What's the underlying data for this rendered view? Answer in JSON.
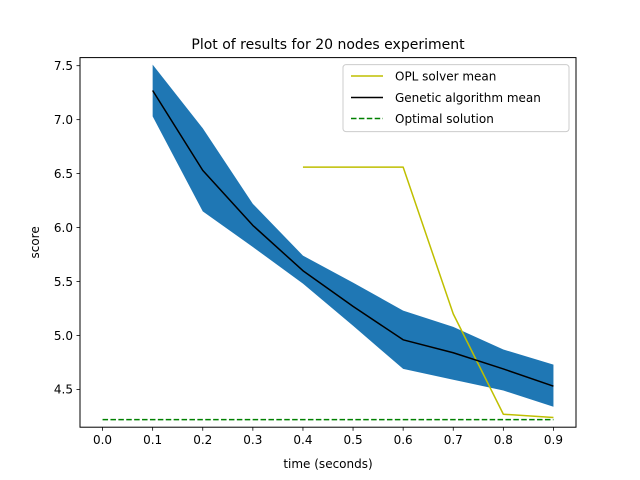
{
  "chart_data": {
    "type": "line",
    "title": "Plot of results for 20 nodes experiment",
    "xlabel": "time (seconds)",
    "ylabel": "score",
    "xlim": [
      -0.045,
      0.945
    ],
    "ylim": [
      4.15,
      7.575
    ],
    "xticks": [
      0.0,
      0.1,
      0.2,
      0.3,
      0.4,
      0.5,
      0.6,
      0.7,
      0.8,
      0.9
    ],
    "xtick_labels": [
      "0.0",
      "0.1",
      "0.2",
      "0.3",
      "0.4",
      "0.5",
      "0.6",
      "0.7",
      "0.8",
      "0.9"
    ],
    "yticks": [
      4.5,
      5.0,
      5.5,
      6.0,
      6.5,
      7.0,
      7.5
    ],
    "ytick_labels": [
      "4.5",
      "5.0",
      "5.5",
      "6.0",
      "6.5",
      "7.0",
      "7.5"
    ],
    "grid": false,
    "legend_position": "top-right",
    "series": [
      {
        "name": "OPL solver mean",
        "color": "#bfbf00",
        "style": "solid",
        "x": [
          0.4,
          0.6,
          0.7,
          0.8,
          0.9
        ],
        "y": [
          6.56,
          6.56,
          5.2,
          4.27,
          4.24
        ]
      },
      {
        "name": "Genetic algorithm mean",
        "color": "#000000",
        "style": "solid",
        "x": [
          0.1,
          0.2,
          0.3,
          0.4,
          0.5,
          0.6,
          0.7,
          0.8,
          0.9
        ],
        "y": [
          7.27,
          6.53,
          6.02,
          5.6,
          5.27,
          4.96,
          4.84,
          4.69,
          4.53
        ]
      },
      {
        "name": "Optimal solution",
        "color": "#008000",
        "style": "dashed",
        "x": [
          0.0,
          0.9
        ],
        "y": [
          4.22,
          4.22
        ]
      }
    ],
    "band": {
      "color": "#1f77b4",
      "x": [
        0.1,
        0.2,
        0.3,
        0.4,
        0.5,
        0.6,
        0.7,
        0.8,
        0.9
      ],
      "upper": [
        7.51,
        6.92,
        6.22,
        5.74,
        5.49,
        5.23,
        5.08,
        4.87,
        4.73
      ],
      "lower": [
        7.03,
        6.15,
        5.82,
        5.48,
        5.09,
        4.69,
        4.59,
        4.49,
        4.34
      ]
    }
  }
}
